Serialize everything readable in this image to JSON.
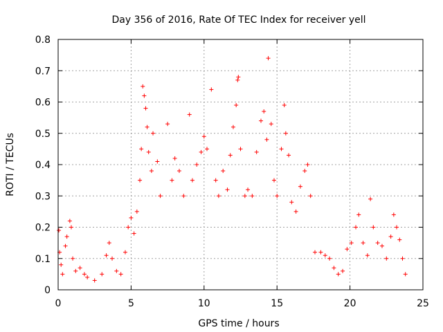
{
  "chart_data": {
    "type": "scatter",
    "title": "Day 356 of 2016, Rate Of TEC Index for receiver yell",
    "xlabel": "GPS time / hours",
    "ylabel": "ROTI / TECUs",
    "xlim": [
      0,
      25
    ],
    "ylim": [
      0,
      0.8
    ],
    "xticks": [
      0,
      5,
      10,
      15,
      20,
      25
    ],
    "yticks": [
      0,
      0.1,
      0.2,
      0.3,
      0.4,
      0.5,
      0.6,
      0.7,
      0.8
    ],
    "xtick_labels": [
      "0",
      "5",
      "10",
      "15",
      "20",
      "25"
    ],
    "ytick_labels": [
      "0",
      "0.1",
      "0.2",
      "0.3",
      "0.4",
      "0.5",
      "0.6",
      "0.7",
      "0.8"
    ],
    "grid": true,
    "marker": "+",
    "color": "#ff0000",
    "series": [
      {
        "name": "ROTI",
        "points": [
          [
            0.05,
            0.19
          ],
          [
            0.1,
            0.12
          ],
          [
            0.2,
            0.08
          ],
          [
            0.3,
            0.05
          ],
          [
            0.5,
            0.14
          ],
          [
            0.6,
            0.17
          ],
          [
            0.8,
            0.22
          ],
          [
            0.9,
            0.2
          ],
          [
            1.0,
            0.1
          ],
          [
            1.2,
            0.06
          ],
          [
            1.5,
            0.07
          ],
          [
            1.8,
            0.05
          ],
          [
            2.0,
            0.04
          ],
          [
            2.5,
            0.03
          ],
          [
            3.0,
            0.05
          ],
          [
            3.3,
            0.11
          ],
          [
            3.5,
            0.15
          ],
          [
            3.7,
            0.1
          ],
          [
            4.0,
            0.06
          ],
          [
            4.3,
            0.05
          ],
          [
            4.6,
            0.12
          ],
          [
            4.8,
            0.2
          ],
          [
            5.0,
            0.23
          ],
          [
            5.2,
            0.18
          ],
          [
            5.4,
            0.25
          ],
          [
            5.6,
            0.35
          ],
          [
            5.7,
            0.45
          ],
          [
            5.8,
            0.65
          ],
          [
            5.9,
            0.62
          ],
          [
            6.0,
            0.58
          ],
          [
            6.1,
            0.52
          ],
          [
            6.2,
            0.44
          ],
          [
            6.4,
            0.38
          ],
          [
            6.5,
            0.5
          ],
          [
            6.8,
            0.41
          ],
          [
            7.0,
            0.3
          ],
          [
            7.5,
            0.53
          ],
          [
            7.8,
            0.35
          ],
          [
            8.0,
            0.42
          ],
          [
            8.3,
            0.38
          ],
          [
            8.6,
            0.3
          ],
          [
            9.0,
            0.56
          ],
          [
            9.2,
            0.35
          ],
          [
            9.5,
            0.4
          ],
          [
            9.8,
            0.44
          ],
          [
            10.0,
            0.49
          ],
          [
            10.2,
            0.45
          ],
          [
            10.5,
            0.64
          ],
          [
            10.8,
            0.35
          ],
          [
            11.0,
            0.3
          ],
          [
            11.3,
            0.38
          ],
          [
            11.6,
            0.32
          ],
          [
            11.8,
            0.43
          ],
          [
            12.0,
            0.52
          ],
          [
            12.2,
            0.59
          ],
          [
            12.3,
            0.67
          ],
          [
            12.35,
            0.68
          ],
          [
            12.5,
            0.45
          ],
          [
            12.8,
            0.3
          ],
          [
            13.0,
            0.32
          ],
          [
            13.3,
            0.3
          ],
          [
            13.6,
            0.44
          ],
          [
            13.9,
            0.54
          ],
          [
            14.1,
            0.57
          ],
          [
            14.3,
            0.48
          ],
          [
            14.4,
            0.74
          ],
          [
            14.6,
            0.53
          ],
          [
            14.8,
            0.35
          ],
          [
            15.0,
            0.3
          ],
          [
            15.3,
            0.45
          ],
          [
            15.5,
            0.59
          ],
          [
            15.6,
            0.5
          ],
          [
            15.8,
            0.43
          ],
          [
            16.0,
            0.28
          ],
          [
            16.3,
            0.25
          ],
          [
            16.6,
            0.33
          ],
          [
            16.9,
            0.38
          ],
          [
            17.1,
            0.4
          ],
          [
            17.3,
            0.3
          ],
          [
            17.6,
            0.12
          ],
          [
            18.0,
            0.12
          ],
          [
            18.3,
            0.11
          ],
          [
            18.6,
            0.1
          ],
          [
            18.9,
            0.07
          ],
          [
            19.2,
            0.05
          ],
          [
            19.5,
            0.06
          ],
          [
            19.8,
            0.13
          ],
          [
            20.1,
            0.15
          ],
          [
            20.4,
            0.2
          ],
          [
            20.6,
            0.24
          ],
          [
            20.9,
            0.15
          ],
          [
            21.2,
            0.11
          ],
          [
            21.4,
            0.29
          ],
          [
            21.6,
            0.2
          ],
          [
            21.9,
            0.15
          ],
          [
            22.2,
            0.14
          ],
          [
            22.5,
            0.1
          ],
          [
            22.8,
            0.17
          ],
          [
            23.0,
            0.24
          ],
          [
            23.2,
            0.2
          ],
          [
            23.4,
            0.16
          ],
          [
            23.6,
            0.1
          ],
          [
            23.8,
            0.05
          ]
        ]
      }
    ]
  }
}
